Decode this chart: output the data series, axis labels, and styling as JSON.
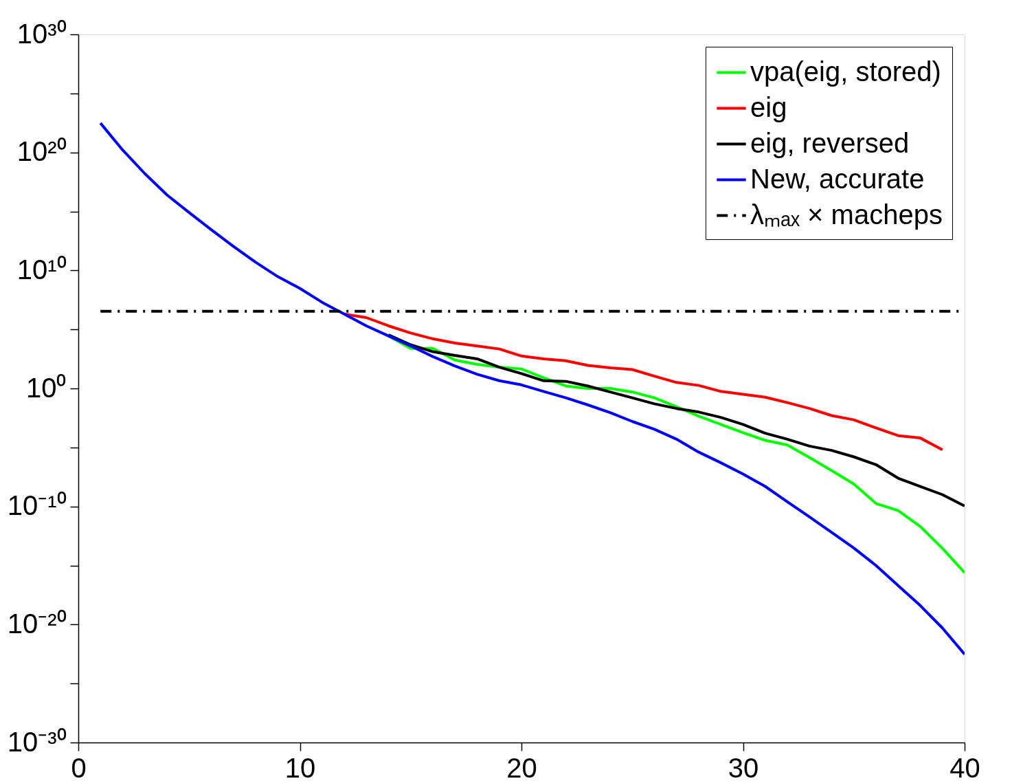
{
  "chart_data": {
    "type": "line",
    "log": "y",
    "grid": false,
    "legend": "top right",
    "marker": "none",
    "xlim": [
      0,
      40
    ],
    "xticks": [
      0,
      10,
      20,
      30,
      40
    ],
    "ylim": [
      1e-30,
      1e+30
    ],
    "yticks": [
      {
        "value": 1e-30,
        "label": "10⁻³⁰"
      },
      {
        "value": 1e-25,
        "label": null
      },
      {
        "value": 1e-20,
        "label": "10⁻²⁰"
      },
      {
        "value": 1e-15,
        "label": null
      },
      {
        "value": 1e-10,
        "label": "10⁻¹⁰"
      },
      {
        "value": 1e-05,
        "label": null
      },
      {
        "value": 1,
        "label": "10⁰"
      },
      {
        "value": 100000.0,
        "label": null
      },
      {
        "value": 10000000000.0,
        "label": "10¹⁰"
      },
      {
        "value": 1000000000000000.0,
        "label": null
      },
      {
        "value": 1e+20,
        "label": "10²⁰"
      },
      {
        "value": 1e+25,
        "label": null
      },
      {
        "value": 1e+30,
        "label": "10³⁰"
      }
    ],
    "x": [
      1,
      2,
      3,
      4,
      5,
      6,
      7,
      8,
      9,
      10,
      11,
      12,
      13,
      14,
      15,
      16,
      17,
      18,
      19,
      20,
      21,
      22,
      23,
      24,
      25,
      26,
      27,
      28,
      29,
      30,
      31,
      32,
      33,
      34,
      35,
      36,
      37,
      38,
      39,
      40
    ],
    "series": [
      {
        "name": "vpa(eig, stored)",
        "color": "#00ff00",
        "line_style": "solid",
        "values": [
          null,
          null,
          null,
          null,
          null,
          null,
          null,
          null,
          null,
          null,
          null,
          null,
          null,
          28000.0,
          2500.0,
          2500.0,
          250,
          110,
          63,
          45,
          8,
          1.6,
          1,
          1,
          0.5,
          0.16,
          0.028,
          0.0045,
          0.0009,
          0.00018,
          4e-05,
          1.6e-05,
          1.4e-06,
          1.1e-07,
          8e-09,
          1.8e-10,
          4.5e-11,
          2e-12,
          2.8e-14,
          2.5e-16
        ]
      },
      {
        "name": "eig",
        "color": "#ff0000",
        "line_style": "solid",
        "values": [
          null,
          null,
          null,
          null,
          null,
          null,
          null,
          null,
          null,
          null,
          null,
          2000000.0,
          1000000.0,
          200000.0,
          50000.0,
          16000.0,
          7000.0,
          4000.0,
          2200.0,
          560,
          320,
          220,
          90,
          56,
          40,
          11,
          3.2,
          1.8,
          0.56,
          0.32,
          0.18,
          0.063,
          0.02,
          0.005,
          0.0022,
          0.00045,
          0.0001,
          6.3e-05,
          6.3e-06,
          null
        ]
      },
      {
        "name": "eig, reversed",
        "color": "#000000",
        "line_style": "solid",
        "values": [
          null,
          null,
          null,
          null,
          null,
          null,
          null,
          null,
          null,
          null,
          null,
          null,
          null,
          35000.0,
          5000.0,
          1300.0,
          630,
          320,
          63,
          18,
          4.5,
          4,
          1.6,
          0.5,
          0.16,
          0.05,
          0.02,
          0.01,
          0.0035,
          0.0009,
          0.00016,
          5e-05,
          1.3e-05,
          5.6e-06,
          1.6e-06,
          3.5e-07,
          2.5e-08,
          5e-09,
          1e-09,
          1.1e-10
        ]
      },
      {
        "name": "New, accurate",
        "color": "#0000ff",
        "line_style": "solid",
        "values": [
          3e+22,
          1.6e+20,
          1.6e+18,
          2.5e+16,
          800000000000000.0,
          28000000000000.0,
          1100000000000.0,
          50000000000.0,
          3000000000.0,
          300000000.0,
          20000000.0,
          2000000.0,
          200000.0,
          28000.0,
          4000.0,
          500,
          80,
          16,
          4.5,
          2,
          0.56,
          0.16,
          0.04,
          0.009,
          0.0016,
          0.00035,
          5e-05,
          4e-06,
          5e-07,
          5.6e-08,
          5e-09,
          2.5e-10,
          1.3e-11,
          6.3e-13,
          3e-14,
          1e-15,
          2e-17,
          4e-19,
          5e-21,
          3e-23
        ]
      },
      {
        "name": "λₘₐₓ × macheps",
        "color": "#000000",
        "line_style": "dashdot",
        "x": [
          1,
          40
        ],
        "values": [
          3500000.0,
          3500000.0
        ]
      }
    ]
  }
}
